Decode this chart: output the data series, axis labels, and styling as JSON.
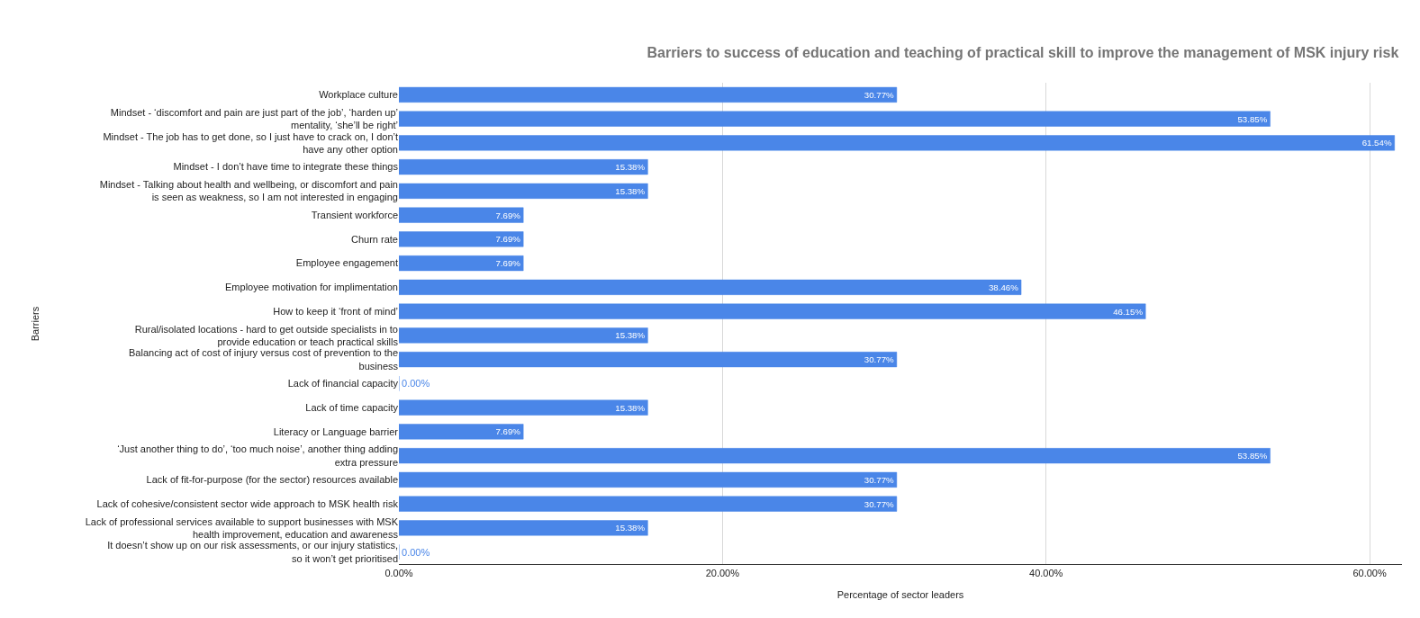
{
  "chart_data": {
    "type": "bar",
    "orientation": "horizontal",
    "title": "Barriers to success of education and teaching of practical skill to improve the management of MSK injury risk",
    "xlabel": "Percentage of sector leaders",
    "ylabel": "Barriers",
    "categories": [
      "Workplace culture",
      "Mindset - ‘discomfort and pain are just part of the job’, ‘harden up’ mentality, ‘she’ll be right’",
      "Mindset - The job has to get done, so I just have to crack on, I don’t have any other option",
      "Mindset - I don’t have time to integrate these things",
      "Mindset - Talking about health and wellbeing, or discomfort and pain is seen as weakness, so I am not interested in engaging",
      "Transient workforce",
      "Churn rate",
      "Employee engagement",
      "Employee motivation for implimentation",
      "How to keep it ‘front of mind’",
      "Rural/isolated locations - hard to get outside specialists in to provide education or teach practical skills",
      "Balancing act of cost of injury versus cost of prevention to the business",
      "Lack of financial capacity",
      "Lack of time capacity",
      "Literacy or Language barrier",
      "‘Just another thing to do’, ‘too much noise’, another thing adding extra pressure",
      "Lack of fit-for-purpose (for the sector) resources available",
      "Lack of cohesive/consistent sector wide approach to MSK health risk",
      "Lack of professional services available to support businesses with MSK health improvement, education and awareness",
      "It doesn’t show up on our risk assessments, or our injury statistics, so it won’t get prioritised"
    ],
    "values": [
      30.77,
      53.85,
      61.54,
      15.38,
      15.38,
      7.69,
      7.69,
      7.69,
      38.46,
      46.15,
      15.38,
      30.77,
      0.0,
      15.38,
      7.69,
      53.85,
      30.77,
      30.77,
      15.38,
      0.0
    ],
    "value_labels": [
      "30.77%",
      "53.85%",
      "61.54%",
      "15.38%",
      "15.38%",
      "7.69%",
      "7.69%",
      "7.69%",
      "38.46%",
      "46.15%",
      "15.38%",
      "30.77%",
      "0.00%",
      "15.38%",
      "7.69%",
      "53.85%",
      "30.77%",
      "30.77%",
      "15.38%",
      "0.00%"
    ],
    "color": "#4a86e8",
    "xlim": [
      0,
      62
    ],
    "xticks": [
      {
        "value": 0,
        "label": "0.00%"
      },
      {
        "value": 20,
        "label": "20.00%"
      },
      {
        "value": 40,
        "label": "40.00%"
      },
      {
        "value": 60,
        "label": "60.00%"
      }
    ],
    "grid": "x",
    "legend": false
  }
}
